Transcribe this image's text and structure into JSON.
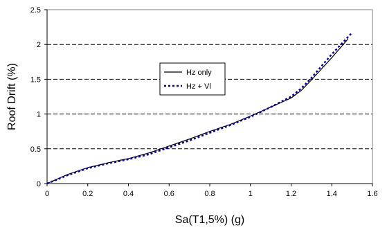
{
  "chart_data": {
    "type": "line",
    "xlabel": "Sa(T1,5%) (g)",
    "ylabel": "Roof Drift (%)",
    "xlim": [
      0,
      1.6
    ],
    "ylim": [
      0,
      2.5
    ],
    "x_ticks": [
      "0",
      "0.2",
      "0.4",
      "0.6",
      "0.8",
      "1",
      "1.2",
      "1.4",
      "1.6"
    ],
    "y_ticks": [
      "0",
      "0.5",
      "1",
      "1.5",
      "2",
      "2.5"
    ],
    "grid": "horizontal dashed",
    "legend_position": "center",
    "series": [
      {
        "name": "Hz only",
        "style": "solid",
        "color": "#000000",
        "x": [
          0,
          0.1,
          0.2,
          0.3,
          0.4,
          0.5,
          0.6,
          0.7,
          0.8,
          0.9,
          1.0,
          1.1,
          1.2,
          1.25,
          1.3,
          1.4,
          1.48
        ],
        "y": [
          0,
          0.13,
          0.23,
          0.3,
          0.36,
          0.44,
          0.54,
          0.64,
          0.75,
          0.85,
          0.97,
          1.1,
          1.23,
          1.34,
          1.49,
          1.81,
          2.08
        ]
      },
      {
        "name": "Hz + Vl",
        "style": "dotted",
        "color": "#00008b",
        "x": [
          0,
          0.1,
          0.2,
          0.3,
          0.4,
          0.5,
          0.6,
          0.7,
          0.8,
          0.9,
          1.0,
          1.1,
          1.2,
          1.25,
          1.3,
          1.4,
          1.5
        ],
        "y": [
          0,
          0.12,
          0.22,
          0.29,
          0.35,
          0.42,
          0.52,
          0.62,
          0.73,
          0.84,
          0.96,
          1.1,
          1.25,
          1.37,
          1.52,
          1.86,
          2.17
        ]
      }
    ]
  }
}
